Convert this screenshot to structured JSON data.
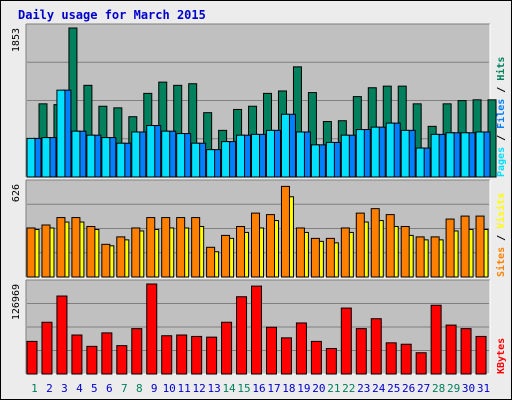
{
  "chart_data": [
    {
      "type": "bar",
      "panel": "pages-files-hits",
      "title": "Daily usage for March 2015",
      "ylabel_parts": [
        {
          "text": "Pages",
          "color": "#00E0FF"
        },
        {
          "text": " / ",
          "color": "#000000"
        },
        {
          "text": "Files",
          "color": "#0080FF"
        },
        {
          "text": " / ",
          "color": "#000000"
        },
        {
          "text": "Hits",
          "color": "#00805C"
        }
      ],
      "ymax_label": "1853",
      "ylim": [
        0,
        1853
      ],
      "grid": true,
      "categories": [
        "1",
        "2",
        "3",
        "4",
        "5",
        "6",
        "7",
        "8",
        "9",
        "10",
        "11",
        "12",
        "13",
        "14",
        "15",
        "16",
        "17",
        "18",
        "19",
        "20",
        "21",
        "22",
        "23",
        "24",
        "25",
        "26",
        "27",
        "28",
        "29",
        "30",
        "31"
      ],
      "series": [
        {
          "name": "Hits",
          "color": "#00805C",
          "values": [
            910,
            900,
            1853,
            1140,
            880,
            860,
            750,
            1040,
            1180,
            1140,
            1160,
            800,
            580,
            840,
            880,
            1040,
            1070,
            1370,
            1050,
            690,
            700,
            1000,
            1110,
            1130,
            1130,
            910,
            630,
            910,
            950,
            960,
            960
          ]
        },
        {
          "name": "Files",
          "color": "#0080FF",
          "values": [
            480,
            490,
            1080,
            570,
            520,
            490,
            420,
            560,
            640,
            570,
            540,
            420,
            340,
            440,
            520,
            530,
            580,
            780,
            560,
            400,
            430,
            520,
            590,
            620,
            670,
            580,
            360,
            530,
            550,
            550,
            560
          ]
        },
        {
          "name": "Pages",
          "color": "#00E0FF",
          "values": [
            480,
            490,
            1080,
            570,
            520,
            490,
            420,
            560,
            640,
            570,
            540,
            420,
            340,
            440,
            520,
            530,
            580,
            780,
            560,
            400,
            430,
            520,
            590,
            620,
            670,
            580,
            360,
            530,
            550,
            550,
            560
          ]
        }
      ]
    },
    {
      "type": "bar",
      "panel": "visits-sites",
      "ylabel_parts": [
        {
          "text": "Sites",
          "color": "#FF8000"
        },
        {
          "text": " / ",
          "color": "#000000"
        },
        {
          "text": "Visits",
          "color": "#FFFF00"
        }
      ],
      "ymax_label": "626",
      "ylim": [
        0,
        626
      ],
      "grid": true,
      "categories": [
        "1",
        "2",
        "3",
        "4",
        "5",
        "6",
        "7",
        "8",
        "9",
        "10",
        "11",
        "12",
        "13",
        "14",
        "15",
        "16",
        "17",
        "18",
        "19",
        "20",
        "21",
        "22",
        "23",
        "24",
        "25",
        "26",
        "27",
        "28",
        "29",
        "30",
        "31"
      ],
      "series": [
        {
          "name": "Visits",
          "color": "#FFFF00",
          "values": [
            320,
            330,
            370,
            370,
            320,
            210,
            250,
            310,
            320,
            330,
            330,
            340,
            170,
            260,
            300,
            330,
            380,
            540,
            300,
            240,
            230,
            300,
            370,
            380,
            340,
            280,
            250,
            250,
            310,
            320,
            320
          ]
        },
        {
          "name": "Sites",
          "color": "#FF8000",
          "values": [
            330,
            350,
            400,
            400,
            340,
            220,
            270,
            330,
            400,
            400,
            400,
            400,
            200,
            280,
            340,
            430,
            420,
            610,
            330,
            260,
            260,
            330,
            430,
            460,
            420,
            340,
            270,
            270,
            390,
            410,
            410
          ]
        }
      ]
    },
    {
      "type": "bar",
      "panel": "kbytes",
      "ylabel_parts": [
        {
          "text": "KBytes",
          "color": "#FF0000"
        }
      ],
      "ymax_label": "126969",
      "ylim": [
        0,
        126969
      ],
      "grid": true,
      "categories": [
        "1",
        "2",
        "3",
        "4",
        "5",
        "6",
        "7",
        "8",
        "9",
        "10",
        "11",
        "12",
        "13",
        "14",
        "15",
        "16",
        "17",
        "18",
        "19",
        "20",
        "21",
        "22",
        "23",
        "24",
        "25",
        "26",
        "27",
        "28",
        "29",
        "30",
        "31"
      ],
      "series": [
        {
          "name": "KBytes",
          "color": "#FF0000",
          "values": [
            46000,
            73000,
            110000,
            55000,
            39000,
            58000,
            40000,
            64000,
            126969,
            54000,
            55000,
            53000,
            52000,
            73000,
            109000,
            124000,
            66000,
            51000,
            72000,
            46000,
            36000,
            93000,
            64000,
            78000,
            44000,
            42000,
            30000,
            97000,
            69000,
            64000,
            53000
          ]
        }
      ]
    }
  ],
  "x_label_colors": [
    "#00805C",
    "#0000CC",
    "#0000CC",
    "#0000CC",
    "#0000CC",
    "#0000CC",
    "#00805C",
    "#00805C",
    "#0000CC",
    "#0000CC",
    "#0000CC",
    "#0000CC",
    "#0000CC",
    "#00805C",
    "#00805C",
    "#0000CC",
    "#0000CC",
    "#0000CC",
    "#0000CC",
    "#0000CC",
    "#00805C",
    "#00805C",
    "#0000CC",
    "#0000CC",
    "#0000CC",
    "#0000CC",
    "#0000CC",
    "#00805C",
    "#00805C",
    "#0000CC",
    "#0000CC"
  ]
}
